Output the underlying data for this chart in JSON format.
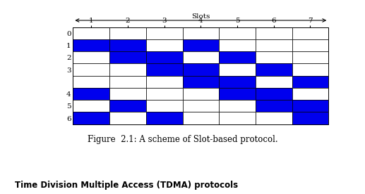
{
  "title": "Figure  2.1: A scheme of Slot-based protocol.",
  "bottom_title": "Time Division Multiple Access (TDMA) protocols",
  "slots_label": "Slots",
  "num_slots": 7,
  "slot_labels": [
    "1",
    "2",
    "3",
    "4",
    "5",
    "6",
    "7"
  ],
  "blue_color": "#0000EE",
  "white_color": "#FFFFFF",
  "bg_color": "#FFFFFF",
  "rows": [
    {
      "label": "0",
      "blue_slots": []
    },
    {
      "label": "1",
      "blue_slots": [
        1,
        2,
        4
      ]
    },
    {
      "label": "2",
      "blue_slots": [
        2,
        3,
        5
      ]
    },
    {
      "label": "3",
      "blue_slots": [
        3,
        4,
        6
      ]
    },
    {
      "label": "",
      "blue_slots": [
        4,
        5,
        7
      ]
    },
    {
      "label": "4",
      "blue_slots": [
        1,
        5,
        6
      ]
    },
    {
      "label": "5",
      "blue_slots": [
        2,
        6,
        7
      ]
    },
    {
      "label": "6",
      "blue_slots": [
        1,
        3,
        7
      ]
    }
  ],
  "figsize": [
    5.17,
    2.76
  ],
  "dpi": 100
}
